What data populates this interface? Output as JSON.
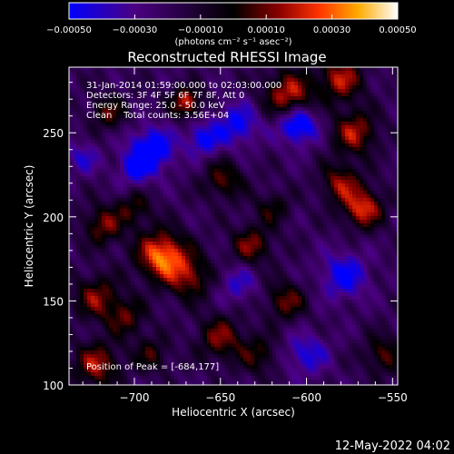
{
  "chart_data": {
    "type": "heatmap",
    "title": "Reconstructed RHESSI Image",
    "xlabel": "Heliocentric X (arcsec)",
    "ylabel": "Heliocentric Y (arcsec)",
    "xlim": [
      -738,
      -547
    ],
    "ylim": [
      100,
      289
    ],
    "x_ticks": [
      -700,
      -650,
      -600,
      -550
    ],
    "y_ticks": [
      100,
      150,
      200,
      250
    ],
    "x_tick_labels": [
      "−700",
      "−650",
      "−600",
      "−550"
    ],
    "y_tick_labels": [
      "100",
      "150",
      "200",
      "250"
    ],
    "colorbar": {
      "range": [
        -0.0005,
        0.0005
      ],
      "ticks": [
        -0.0005,
        -0.0003,
        -0.0001,
        0.0001,
        0.0003,
        0.0005
      ],
      "tick_labels": [
        "−0.00050",
        "−0.00030",
        "−0.00010",
        "0.00010",
        "0.00030",
        "0.00050"
      ],
      "unit_label": "(photons cm⁻² s⁻¹ asec⁻²)",
      "colors": [
        "#0000ff",
        "#4b0082",
        "#000000",
        "#8b0000",
        "#ff3300",
        "#ffaa00",
        "#ffffff"
      ]
    },
    "info_lines": [
      "31-Jan-2014 01:59:00.000 to 02:03:00.000",
      "Detectors: 3F 4F 5F 6F 7F 8F, Att 0",
      "Energy Range: 25.0 - 50.0 keV",
      "Clean    Total counts: 3.56E+04"
    ],
    "peak_label": "Position of Peak = [-684,177]",
    "peak": {
      "x": -684,
      "y": 177
    },
    "sources": [
      {
        "x": -684,
        "y": 177,
        "amp": 0.00052,
        "sigma": 10
      },
      {
        "x": -668,
        "y": 164,
        "amp": 0.0003,
        "sigma": 9
      },
      {
        "x": -718,
        "y": 195,
        "amp": 0.0003,
        "sigma": 8
      },
      {
        "x": -700,
        "y": 205,
        "amp": 0.00022,
        "sigma": 7
      },
      {
        "x": -722,
        "y": 152,
        "amp": 0.0003,
        "sigma": 9
      },
      {
        "x": -705,
        "y": 140,
        "amp": 0.00025,
        "sigma": 8
      },
      {
        "x": -722,
        "y": 112,
        "amp": 0.00035,
        "sigma": 9
      },
      {
        "x": -690,
        "y": 118,
        "amp": 0.00022,
        "sigma": 7
      },
      {
        "x": -650,
        "y": 128,
        "amp": 0.0003,
        "sigma": 9
      },
      {
        "x": -628,
        "y": 118,
        "amp": 0.00022,
        "sigma": 8
      },
      {
        "x": -612,
        "y": 150,
        "amp": 0.00028,
        "sigma": 8
      },
      {
        "x": -632,
        "y": 183,
        "amp": 0.0003,
        "sigma": 8
      },
      {
        "x": -620,
        "y": 205,
        "amp": 0.0002,
        "sigma": 7
      },
      {
        "x": -648,
        "y": 222,
        "amp": 0.00026,
        "sigma": 8
      },
      {
        "x": -580,
        "y": 220,
        "amp": 0.00032,
        "sigma": 8
      },
      {
        "x": -567,
        "y": 205,
        "amp": 0.00042,
        "sigma": 8
      },
      {
        "x": -572,
        "y": 250,
        "amp": 0.00035,
        "sigma": 9
      },
      {
        "x": -610,
        "y": 272,
        "amp": 0.0004,
        "sigma": 10
      },
      {
        "x": -580,
        "y": 282,
        "amp": 0.00036,
        "sigma": 9
      },
      {
        "x": -670,
        "y": 268,
        "amp": 0.0004,
        "sigma": 6
      },
      {
        "x": -715,
        "y": 262,
        "amp": 0.00025,
        "sigma": 7
      },
      {
        "x": -555,
        "y": 118,
        "amp": 0.00025,
        "sigma": 8
      },
      {
        "x": -690,
        "y": 240,
        "amp": -0.00042,
        "sigma": 9
      },
      {
        "x": -660,
        "y": 246,
        "amp": -0.0003,
        "sigma": 7
      },
      {
        "x": -605,
        "y": 255,
        "amp": -0.00045,
        "sigma": 8
      },
      {
        "x": -640,
        "y": 255,
        "amp": -0.0003,
        "sigma": 9
      },
      {
        "x": -578,
        "y": 165,
        "amp": -0.0003,
        "sigma": 10
      },
      {
        "x": -700,
        "y": 228,
        "amp": -0.00025,
        "sigma": 7
      },
      {
        "x": -600,
        "y": 118,
        "amp": -0.00025,
        "sigma": 9
      },
      {
        "x": -730,
        "y": 235,
        "amp": -0.0002,
        "sigma": 7
      },
      {
        "x": -640,
        "y": 160,
        "amp": -0.0002,
        "sigma": 8
      }
    ]
  },
  "footer": {
    "timestamp": "12-May-2022 04:02"
  }
}
